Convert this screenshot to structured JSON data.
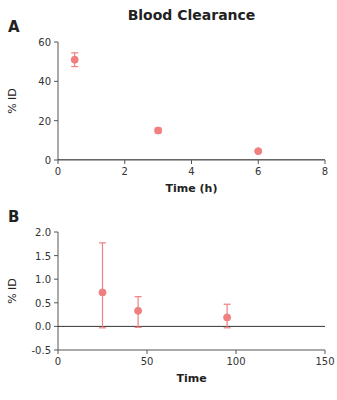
{
  "chart_data": [
    {
      "type": "scatter",
      "title": "Blood Clearance",
      "annotation": "A",
      "x": [
        0.5,
        3.0,
        6.0
      ],
      "values": [
        51.0,
        15.0,
        4.5
      ],
      "yerr": [
        3.5,
        1.2,
        0.5
      ],
      "xlabel": "Time (h)",
      "ylabel": "% ID",
      "xlim": [
        0,
        8
      ],
      "ylim": [
        0,
        60
      ],
      "xticks": [
        0,
        2,
        4,
        6,
        8
      ],
      "yticks": [
        0,
        20,
        40,
        60
      ],
      "hline": 0,
      "color": "#f08080",
      "marker": "circle",
      "grid": false
    },
    {
      "type": "scatter",
      "annotation": "B",
      "x": [
        25,
        45,
        95
      ],
      "values": [
        0.72,
        0.33,
        0.19
      ],
      "yerr_lower": [
        0.75,
        0.35,
        0.22
      ],
      "yerr_upper": [
        1.05,
        0.3,
        0.28
      ],
      "xlabel": "Time",
      "ylabel": "% ID",
      "xlim": [
        0,
        150
      ],
      "ylim": [
        -0.5,
        2.0
      ],
      "xticks": [
        0,
        50,
        100,
        150
      ],
      "yticks": [
        -0.5,
        {
          "value": 0.0,
          "label": "0.0"
        },
        0.5,
        {
          "value": 1.0,
          "label": "1.0"
        },
        1.5,
        {
          "value": 2.0,
          "label": "2.0"
        }
      ],
      "hline": 0,
      "color": "#f08080",
      "marker": "circle",
      "grid": false
    }
  ]
}
